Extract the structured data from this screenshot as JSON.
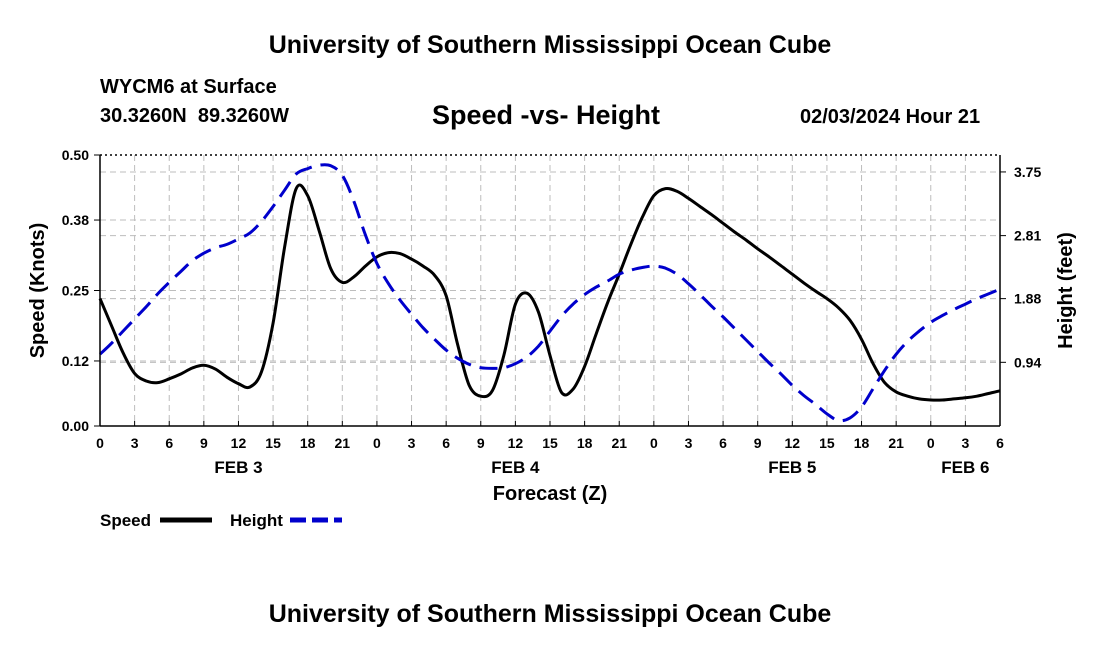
{
  "header": {
    "title": "University of Southern Mississippi Ocean Cube",
    "station_name": "WYCM6 at Surface",
    "station_coords": "30.3260N  89.3260W",
    "datetime": "02/03/2024 Hour 21"
  },
  "footer": {
    "title": "University of Southern Mississippi Ocean Cube"
  },
  "chart_data": {
    "type": "line",
    "title": "Speed -vs- Height",
    "xlabel": "Forecast (Z)",
    "ylabel_left": "Speed (Knots)",
    "ylabel_right": "Height (feet)",
    "x_range_hours": [
      0,
      78
    ],
    "ylim_left": [
      0,
      0.5
    ],
    "ylim_right": [
      0,
      4.0
    ],
    "left_ticks": [
      "0.00",
      "0.12",
      "0.25",
      "0.38",
      "0.50"
    ],
    "right_ticks": [
      {
        "label": "0.94",
        "value": 0.94
      },
      {
        "label": "1.88",
        "value": 1.88
      },
      {
        "label": "2.81",
        "value": 2.81
      },
      {
        "label": "3.75",
        "value": 3.75
      }
    ],
    "x_tick_labels": [
      "0",
      "3",
      "6",
      "9",
      "12",
      "15",
      "18",
      "21",
      "0",
      "3",
      "6",
      "9",
      "12",
      "15",
      "18",
      "21",
      "0",
      "3",
      "6",
      "9",
      "12",
      "15",
      "18",
      "21",
      "0",
      "3",
      "6"
    ],
    "day_labels": [
      {
        "label": "FEB 3",
        "hour": 12
      },
      {
        "label": "FEB 4",
        "hour": 36
      },
      {
        "label": "FEB 5",
        "hour": 60
      },
      {
        "label": "FEB 6",
        "hour": 75
      }
    ],
    "legend": [
      {
        "name": "Speed",
        "color": "#000000",
        "dash": "solid"
      },
      {
        "name": "Height",
        "color": "#0000cc",
        "dash": "dashed"
      }
    ],
    "series": [
      {
        "name": "Speed",
        "axis": "left",
        "color": "#000000",
        "x": [
          0,
          1,
          2,
          3,
          4,
          5,
          6,
          7,
          8,
          9,
          10,
          11,
          12,
          13,
          14,
          15,
          16,
          17,
          18,
          19,
          20,
          21,
          22,
          23,
          24,
          25,
          26,
          27,
          28,
          29,
          30,
          31,
          32,
          33,
          34,
          35,
          36,
          37,
          38,
          39,
          40,
          41,
          42,
          43,
          44,
          45,
          46,
          47,
          48,
          49,
          50,
          51,
          52,
          53,
          54,
          55,
          56,
          57,
          58,
          59,
          60,
          61,
          62,
          63,
          64,
          65,
          66,
          67,
          68,
          69,
          70,
          71,
          72,
          73,
          74,
          75,
          76,
          77,
          78
        ],
        "values": [
          0.235,
          0.185,
          0.135,
          0.097,
          0.083,
          0.08,
          0.087,
          0.096,
          0.107,
          0.112,
          0.105,
          0.09,
          0.078,
          0.072,
          0.1,
          0.19,
          0.33,
          0.438,
          0.425,
          0.36,
          0.29,
          0.265,
          0.275,
          0.295,
          0.312,
          0.32,
          0.318,
          0.308,
          0.295,
          0.278,
          0.24,
          0.15,
          0.075,
          0.055,
          0.065,
          0.13,
          0.225,
          0.245,
          0.21,
          0.13,
          0.062,
          0.068,
          0.11,
          0.17,
          0.228,
          0.28,
          0.335,
          0.385,
          0.425,
          0.438,
          0.433,
          0.42,
          0.405,
          0.39,
          0.374,
          0.358,
          0.343,
          0.327,
          0.312,
          0.296,
          0.28,
          0.264,
          0.249,
          0.235,
          0.218,
          0.195,
          0.16,
          0.115,
          0.08,
          0.063,
          0.055,
          0.05,
          0.048,
          0.048,
          0.05,
          0.052,
          0.055,
          0.06,
          0.065
        ]
      },
      {
        "name": "Height",
        "axis": "right",
        "color": "#0000cc",
        "x": [
          0,
          1,
          2,
          3,
          4,
          5,
          6,
          7,
          8,
          9,
          10,
          11,
          12,
          13,
          14,
          15,
          16,
          17,
          18,
          19,
          20,
          21,
          22,
          23,
          24,
          25,
          26,
          27,
          28,
          29,
          30,
          31,
          32,
          33,
          34,
          35,
          36,
          37,
          38,
          39,
          40,
          41,
          42,
          43,
          44,
          45,
          46,
          47,
          48,
          49,
          50,
          51,
          52,
          53,
          54,
          55,
          56,
          57,
          58,
          59,
          60,
          61,
          62,
          63,
          64,
          65,
          66,
          67,
          68,
          69,
          70,
          71,
          72,
          73,
          74,
          75,
          76,
          77,
          78
        ],
        "values": [
          1.06,
          1.22,
          1.4,
          1.58,
          1.76,
          1.95,
          2.12,
          2.28,
          2.44,
          2.55,
          2.63,
          2.68,
          2.76,
          2.85,
          3.02,
          3.24,
          3.48,
          3.72,
          3.8,
          3.85,
          3.84,
          3.7,
          3.32,
          2.82,
          2.4,
          2.1,
          1.86,
          1.65,
          1.45,
          1.28,
          1.12,
          1.0,
          0.91,
          0.86,
          0.85,
          0.86,
          0.92,
          1.02,
          1.18,
          1.4,
          1.62,
          1.8,
          1.94,
          2.05,
          2.14,
          2.24,
          2.3,
          2.34,
          2.36,
          2.33,
          2.24,
          2.1,
          1.94,
          1.77,
          1.61,
          1.44,
          1.27,
          1.1,
          0.93,
          0.77,
          0.6,
          0.45,
          0.32,
          0.18,
          0.08,
          0.12,
          0.28,
          0.55,
          0.82,
          1.06,
          1.25,
          1.4,
          1.53,
          1.63,
          1.72,
          1.8,
          1.88,
          1.95,
          2.02
        ]
      }
    ]
  }
}
